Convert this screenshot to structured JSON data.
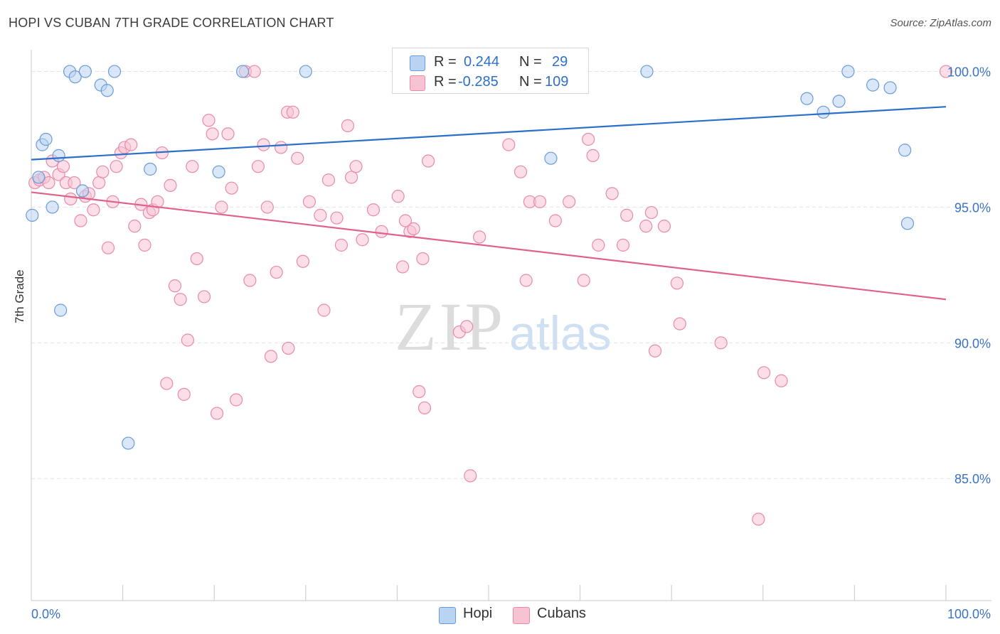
{
  "title": "HOPI VS CUBAN 7TH GRADE CORRELATION CHART",
  "source": "Source: ZipAtlas.com",
  "watermark": {
    "zip": "ZIP",
    "atlas": "atlas"
  },
  "legend": {
    "hopi": {
      "r_label": "R =",
      "r_value": "0.244",
      "n_label": "N =",
      "n_value": "29"
    },
    "cubans": {
      "r_label": "R =",
      "r_value": "-0.285",
      "n_label": "N =",
      "n_value": "109"
    }
  },
  "colors": {
    "hopi_fill": "#b9d3f2",
    "hopi_stroke": "#6a9bd8",
    "hopi_line": "#2a6fcb",
    "cubans_fill": "#f7c3d3",
    "cubans_stroke": "#e88aa8",
    "cubans_line": "#e0608e",
    "axis_text": "#3a72c4",
    "grid": "#e3e3e3"
  },
  "chart_data": {
    "type": "scatter",
    "xlabel": "",
    "ylabel": "7th Grade",
    "xlim": [
      0,
      100
    ],
    "ylim": [
      80.5,
      100.8
    ],
    "x_tick_labels": [
      "0.0%",
      "100.0%"
    ],
    "y_ticks": [
      85,
      90,
      95,
      100
    ],
    "y_tick_labels": [
      "85.0%",
      "90.0%",
      "95.0%",
      "100.0%"
    ],
    "series": [
      {
        "name": "Hopi",
        "trend": [
          [
            0,
            96.75
          ],
          [
            100,
            98.7
          ]
        ],
        "points": [
          [
            0.1,
            94.7
          ],
          [
            0.8,
            96.1
          ],
          [
            1.2,
            97.3
          ],
          [
            1.6,
            97.5
          ],
          [
            2.3,
            95.0
          ],
          [
            3.0,
            96.9
          ],
          [
            3.2,
            91.2
          ],
          [
            4.2,
            100.0
          ],
          [
            4.8,
            99.8
          ],
          [
            5.9,
            100.0
          ],
          [
            5.6,
            95.6
          ],
          [
            7.6,
            99.5
          ],
          [
            8.3,
            99.3
          ],
          [
            9.1,
            100.0
          ],
          [
            10.6,
            86.3
          ],
          [
            13.0,
            96.4
          ],
          [
            20.5,
            96.3
          ],
          [
            23.1,
            100.0
          ],
          [
            30.0,
            100.0
          ],
          [
            56.8,
            96.8
          ],
          [
            67.3,
            100.0
          ],
          [
            84.8,
            99.0
          ],
          [
            86.6,
            98.5
          ],
          [
            88.3,
            98.9
          ],
          [
            89.3,
            100.0
          ],
          [
            92.0,
            99.5
          ],
          [
            93.9,
            99.4
          ],
          [
            95.5,
            97.1
          ],
          [
            95.8,
            94.4
          ]
        ]
      },
      {
        "name": "Cubans",
        "trend": [
          [
            0,
            95.55
          ],
          [
            100,
            91.6
          ]
        ],
        "points": [
          [
            0.4,
            95.9
          ],
          [
            0.9,
            96.0
          ],
          [
            1.4,
            96.1
          ],
          [
            1.9,
            95.9
          ],
          [
            2.3,
            96.7
          ],
          [
            3.0,
            96.2
          ],
          [
            3.5,
            96.5
          ],
          [
            3.8,
            95.9
          ],
          [
            4.3,
            95.3
          ],
          [
            4.7,
            95.9
          ],
          [
            5.4,
            94.5
          ],
          [
            5.9,
            95.4
          ],
          [
            6.3,
            95.5
          ],
          [
            6.8,
            94.9
          ],
          [
            7.4,
            95.9
          ],
          [
            7.8,
            96.3
          ],
          [
            8.4,
            93.5
          ],
          [
            8.9,
            95.2
          ],
          [
            9.3,
            96.5
          ],
          [
            9.8,
            97.0
          ],
          [
            10.2,
            97.2
          ],
          [
            10.9,
            97.3
          ],
          [
            11.3,
            94.3
          ],
          [
            12.0,
            95.1
          ],
          [
            12.4,
            93.6
          ],
          [
            12.9,
            94.8
          ],
          [
            13.3,
            94.9
          ],
          [
            13.8,
            95.2
          ],
          [
            14.3,
            97.0
          ],
          [
            14.8,
            88.5
          ],
          [
            15.2,
            95.8
          ],
          [
            15.7,
            92.1
          ],
          [
            16.3,
            91.6
          ],
          [
            16.7,
            88.1
          ],
          [
            17.1,
            90.1
          ],
          [
            17.6,
            96.5
          ],
          [
            18.1,
            93.1
          ],
          [
            18.9,
            91.7
          ],
          [
            19.4,
            98.2
          ],
          [
            19.8,
            97.7
          ],
          [
            20.3,
            87.4
          ],
          [
            20.8,
            95.0
          ],
          [
            21.5,
            97.7
          ],
          [
            21.9,
            95.7
          ],
          [
            22.4,
            87.9
          ],
          [
            23.4,
            100.0
          ],
          [
            23.9,
            92.3
          ],
          [
            24.4,
            100.0
          ],
          [
            24.8,
            96.5
          ],
          [
            25.4,
            97.3
          ],
          [
            25.8,
            95.0
          ],
          [
            26.2,
            89.5
          ],
          [
            26.8,
            92.6
          ],
          [
            27.3,
            97.2
          ],
          [
            28.1,
            89.8
          ],
          [
            28.0,
            98.5
          ],
          [
            28.6,
            98.5
          ],
          [
            29.1,
            96.8
          ],
          [
            29.7,
            93.0
          ],
          [
            30.4,
            95.2
          ],
          [
            31.6,
            94.7
          ],
          [
            32.0,
            91.2
          ],
          [
            32.5,
            96.0
          ],
          [
            33.4,
            94.6
          ],
          [
            33.9,
            93.6
          ],
          [
            34.6,
            98.0
          ],
          [
            35.0,
            96.1
          ],
          [
            35.5,
            96.5
          ],
          [
            36.2,
            93.8
          ],
          [
            37.4,
            94.9
          ],
          [
            38.3,
            94.1
          ],
          [
            40.1,
            95.4
          ],
          [
            40.6,
            92.8
          ],
          [
            40.9,
            94.5
          ],
          [
            41.4,
            94.1
          ],
          [
            41.8,
            94.2
          ],
          [
            42.4,
            88.2
          ],
          [
            42.8,
            93.1
          ],
          [
            43.0,
            87.6
          ],
          [
            43.4,
            96.7
          ],
          [
            46.8,
            90.4
          ],
          [
            47.6,
            90.6
          ],
          [
            48.0,
            85.1
          ],
          [
            49.0,
            93.9
          ],
          [
            52.2,
            97.3
          ],
          [
            53.5,
            96.3
          ],
          [
            54.1,
            92.3
          ],
          [
            54.5,
            95.2
          ],
          [
            55.6,
            95.2
          ],
          [
            57.3,
            94.5
          ],
          [
            58.8,
            95.2
          ],
          [
            60.4,
            92.3
          ],
          [
            60.9,
            97.5
          ],
          [
            61.4,
            96.9
          ],
          [
            62.0,
            93.6
          ],
          [
            63.5,
            95.5
          ],
          [
            64.7,
            93.6
          ],
          [
            65.1,
            94.7
          ],
          [
            67.2,
            94.3
          ],
          [
            67.8,
            94.8
          ],
          [
            68.2,
            89.7
          ],
          [
            69.2,
            94.3
          ],
          [
            70.6,
            92.2
          ],
          [
            70.9,
            90.7
          ],
          [
            75.4,
            90.0
          ],
          [
            79.5,
            83.5
          ],
          [
            80.1,
            88.9
          ],
          [
            82.0,
            88.6
          ],
          [
            100.0,
            100.0
          ]
        ]
      }
    ]
  },
  "bottom_legend": {
    "hopi": "Hopi",
    "cubans": "Cubans"
  }
}
